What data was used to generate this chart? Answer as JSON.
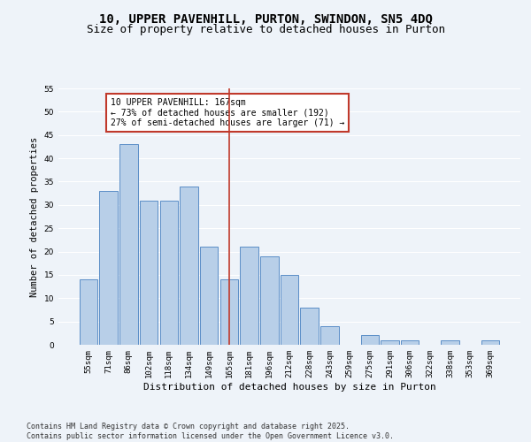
{
  "title1": "10, UPPER PAVENHILL, PURTON, SWINDON, SN5 4DQ",
  "title2": "Size of property relative to detached houses in Purton",
  "xlabel": "Distribution of detached houses by size in Purton",
  "ylabel": "Number of detached properties",
  "categories": [
    "55sqm",
    "71sqm",
    "86sqm",
    "102sqm",
    "118sqm",
    "134sqm",
    "149sqm",
    "165sqm",
    "181sqm",
    "196sqm",
    "212sqm",
    "228sqm",
    "243sqm",
    "259sqm",
    "275sqm",
    "291sqm",
    "306sqm",
    "322sqm",
    "338sqm",
    "353sqm",
    "369sqm"
  ],
  "values": [
    14,
    33,
    43,
    31,
    31,
    34,
    21,
    14,
    21,
    19,
    15,
    8,
    4,
    0,
    2,
    1,
    1,
    0,
    1,
    0,
    1
  ],
  "bar_color": "#b8cfe8",
  "bar_edge_color": "#5b8ec7",
  "highlight_index": 7,
  "highlight_line_color": "#c0392b",
  "annotation_box_text": "10 UPPER PAVENHILL: 167sqm\n← 73% of detached houses are smaller (192)\n27% of semi-detached houses are larger (71) →",
  "annotation_box_color": "#c0392b",
  "ylim": [
    0,
    55
  ],
  "yticks": [
    0,
    5,
    10,
    15,
    20,
    25,
    30,
    35,
    40,
    45,
    50,
    55
  ],
  "background_color": "#eef3f9",
  "grid_color": "#ffffff",
  "footer1": "Contains HM Land Registry data © Crown copyright and database right 2025.",
  "footer2": "Contains public sector information licensed under the Open Government Licence v3.0.",
  "title1_fontsize": 10,
  "title2_fontsize": 9,
  "axis_label_fontsize": 7.5,
  "tick_fontsize": 6.5,
  "annotation_fontsize": 7,
  "footer_fontsize": 6
}
